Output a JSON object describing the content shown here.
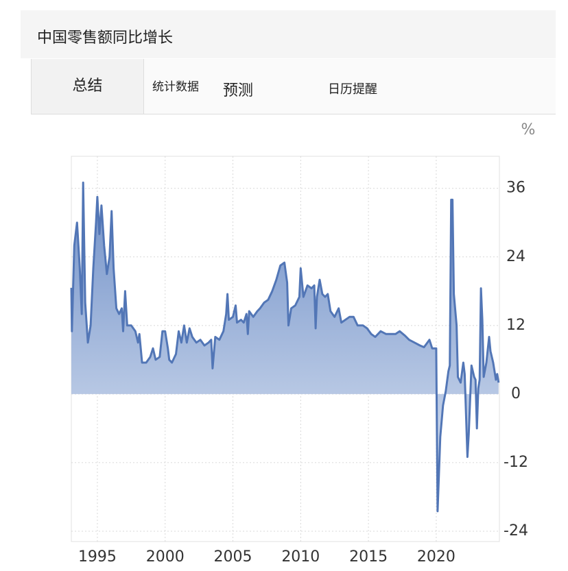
{
  "header": {
    "title": "中国零售额同比增长"
  },
  "tabs": [
    "总结",
    "统计数据",
    "预测",
    "日历提醒"
  ],
  "chart_data": {
    "type": "area",
    "unit": "%",
    "color": "#5276b6",
    "grid": true,
    "xlim": [
      1993.08,
      2024.66
    ],
    "ylim": [
      -25.8,
      41.6
    ],
    "xticks": [
      1995,
      2000,
      2005,
      2010,
      2015,
      2020
    ],
    "yticks": [
      -24,
      -12,
      0,
      12,
      24,
      36
    ],
    "x": [
      1993.08,
      1993.12,
      1993.3,
      1993.5,
      1993.7,
      1993.85,
      1993.95,
      1994.1,
      1994.3,
      1994.5,
      1994.7,
      1994.9,
      1995.0,
      1995.15,
      1995.3,
      1995.5,
      1995.7,
      1995.9,
      1996.05,
      1996.2,
      1996.4,
      1996.6,
      1996.8,
      1996.9,
      1997.05,
      1997.2,
      1997.5,
      1997.8,
      1998.0,
      1998.1,
      1998.3,
      1998.6,
      1998.9,
      1999.1,
      1999.3,
      1999.6,
      1999.8,
      2000.0,
      2000.2,
      2000.3,
      2000.5,
      2000.8,
      2001.0,
      2001.2,
      2001.4,
      2001.6,
      2001.8,
      2002.0,
      2002.3,
      2002.6,
      2002.9,
      2003.2,
      2003.4,
      2003.5,
      2003.7,
      2004.0,
      2004.3,
      2004.5,
      2004.6,
      2004.7,
      2005.0,
      2005.2,
      2005.3,
      2005.6,
      2005.8,
      2006.0,
      2006.1,
      2006.2,
      2006.5,
      2006.8,
      2007.0,
      2007.3,
      2007.6,
      2007.9,
      2008.2,
      2008.5,
      2008.8,
      2009.0,
      2009.1,
      2009.3,
      2009.6,
      2009.9,
      2010.0,
      2010.2,
      2010.5,
      2010.8,
      2011.0,
      2011.1,
      2011.2,
      2011.4,
      2011.6,
      2011.8,
      2012.0,
      2012.2,
      2012.5,
      2012.8,
      2013.0,
      2013.3,
      2013.6,
      2013.9,
      2014.2,
      2014.6,
      2014.9,
      2015.2,
      2015.5,
      2015.9,
      2016.3,
      2016.7,
      2017.0,
      2017.3,
      2017.7,
      2018.0,
      2018.4,
      2018.8,
      2019.1,
      2019.5,
      2019.7,
      2019.9,
      2020.0,
      2020.1,
      2020.3,
      2020.5,
      2020.7,
      2020.9,
      2021.0,
      2021.1,
      2021.2,
      2021.3,
      2021.5,
      2021.6,
      2021.8,
      2022.0,
      2022.1,
      2022.3,
      2022.4,
      2022.6,
      2022.8,
      2022.9,
      2023.0,
      2023.1,
      2023.2,
      2023.3,
      2023.4,
      2023.5,
      2023.7,
      2023.9,
      2024.0,
      2024.2,
      2024.4,
      2024.5,
      2024.6
    ],
    "values": [
      18.6,
      11,
      26,
      30,
      22,
      14,
      37,
      16,
      9,
      12,
      22,
      30,
      34.5,
      28,
      33,
      26,
      21,
      24,
      32,
      22,
      15,
      14,
      15,
      11,
      18,
      12,
      12,
      11,
      9,
      10.5,
      5.5,
      5.5,
      6.5,
      8,
      6,
      6.5,
      11,
      11,
      8,
      6,
      5.5,
      7,
      11,
      9,
      12,
      9,
      11.5,
      10,
      9,
      9.5,
      8.5,
      9,
      9.5,
      4.5,
      10,
      9.5,
      11,
      14,
      17.5,
      13,
      13.5,
      15.5,
      12.5,
      13,
      12.5,
      14,
      10.5,
      14.5,
      13.5,
      14.5,
      15,
      16,
      16.5,
      18,
      20,
      22.5,
      23,
      19.5,
      12,
      15,
      15.5,
      17,
      22,
      17,
      19,
      18.5,
      19,
      11.5,
      17,
      20,
      17.5,
      17,
      17.5,
      14.5,
      13.5,
      15,
      12.5,
      13,
      13.5,
      13.5,
      12,
      12,
      11.5,
      10.5,
      10,
      11,
      10.5,
      10.5,
      10.5,
      11,
      10.2,
      9.5,
      9,
      8.5,
      8.2,
      9.5,
      8,
      8,
      8,
      -20.5,
      -7.5,
      -2,
      0.5,
      4,
      5,
      34,
      34,
      17.5,
      12,
      3,
      2,
      5.5,
      3.5,
      -11,
      -7,
      5,
      3,
      2.5,
      -6,
      1,
      2.5,
      18.5,
      13,
      3,
      5.5,
      10,
      7.5,
      5.5,
      2.5,
      3.5,
      2
    ]
  }
}
